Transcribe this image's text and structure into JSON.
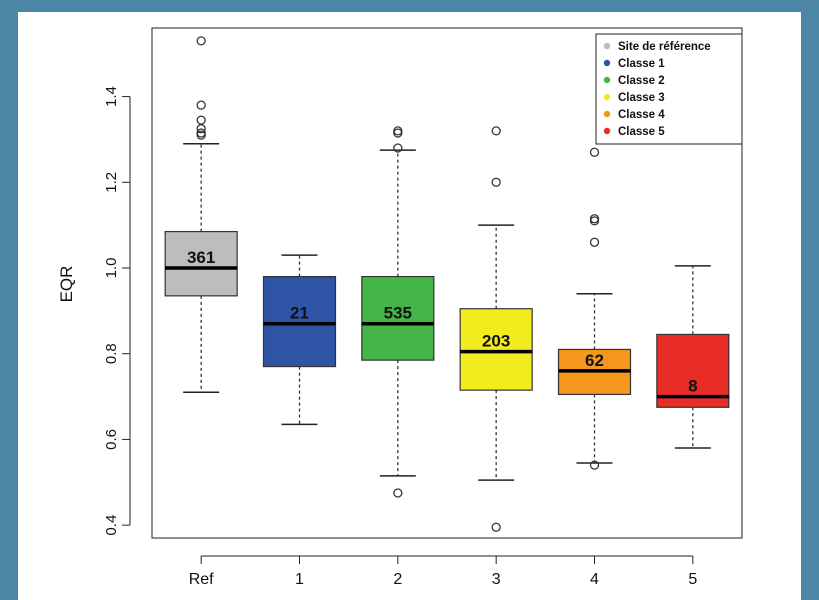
{
  "chart_data": {
    "type": "box",
    "title": "",
    "xlabel": "",
    "ylabel": "EQR",
    "ylim": [
      0.37,
      1.56
    ],
    "yticks": [
      "0.4",
      "0.6",
      "0.8",
      "1.0",
      "1.2",
      "1.4"
    ],
    "grid": false,
    "legend_position": "top-right",
    "legend": [
      {
        "label": "Site de référence",
        "color": "#bdbdbd"
      },
      {
        "label": "Classe 1",
        "color": "#2e54a5"
      },
      {
        "label": "Classe 2",
        "color": "#43b549"
      },
      {
        "label": "Classe 3",
        "color": "#f2ec1e"
      },
      {
        "label": "Classe 4",
        "color": "#f5961d"
      },
      {
        "label": "Classe 5",
        "color": "#e72d25"
      }
    ],
    "categories": [
      "Ref",
      "1",
      "2",
      "3",
      "4",
      "5"
    ],
    "boxes": [
      {
        "category": "Ref",
        "n": "361",
        "color": "#bdbdbd",
        "whisker_low": 0.71,
        "q1": 0.935,
        "median": 1.0,
        "q3": 1.085,
        "whisker_high": 1.29,
        "outliers": [
          1.53,
          1.38,
          1.345,
          1.325,
          1.315,
          1.31
        ]
      },
      {
        "category": "1",
        "n": "21",
        "color": "#2e54a5",
        "whisker_low": 0.635,
        "q1": 0.77,
        "median": 0.87,
        "q3": 0.98,
        "whisker_high": 1.03,
        "outliers": []
      },
      {
        "category": "2",
        "n": "535",
        "color": "#43b549",
        "whisker_low": 0.515,
        "q1": 0.785,
        "median": 0.87,
        "q3": 0.98,
        "whisker_high": 1.275,
        "outliers": [
          0.475,
          1.28,
          1.315,
          1.32
        ]
      },
      {
        "category": "3",
        "n": "203",
        "color": "#f2ec1e",
        "whisker_low": 0.505,
        "q1": 0.715,
        "median": 0.805,
        "q3": 0.905,
        "whisker_high": 1.1,
        "outliers": [
          0.395,
          1.2,
          1.32
        ]
      },
      {
        "category": "4",
        "n": "62",
        "color": "#f5961d",
        "whisker_low": 0.545,
        "q1": 0.705,
        "median": 0.76,
        "q3": 0.81,
        "whisker_high": 0.94,
        "outliers": [
          0.54,
          1.06,
          1.11,
          1.115,
          1.27
        ]
      },
      {
        "category": "5",
        "n": "8",
        "color": "#e72d25",
        "whisker_low": 0.58,
        "q1": 0.675,
        "median": 0.7,
        "q3": 0.845,
        "whisker_high": 1.005,
        "outliers": []
      }
    ]
  }
}
